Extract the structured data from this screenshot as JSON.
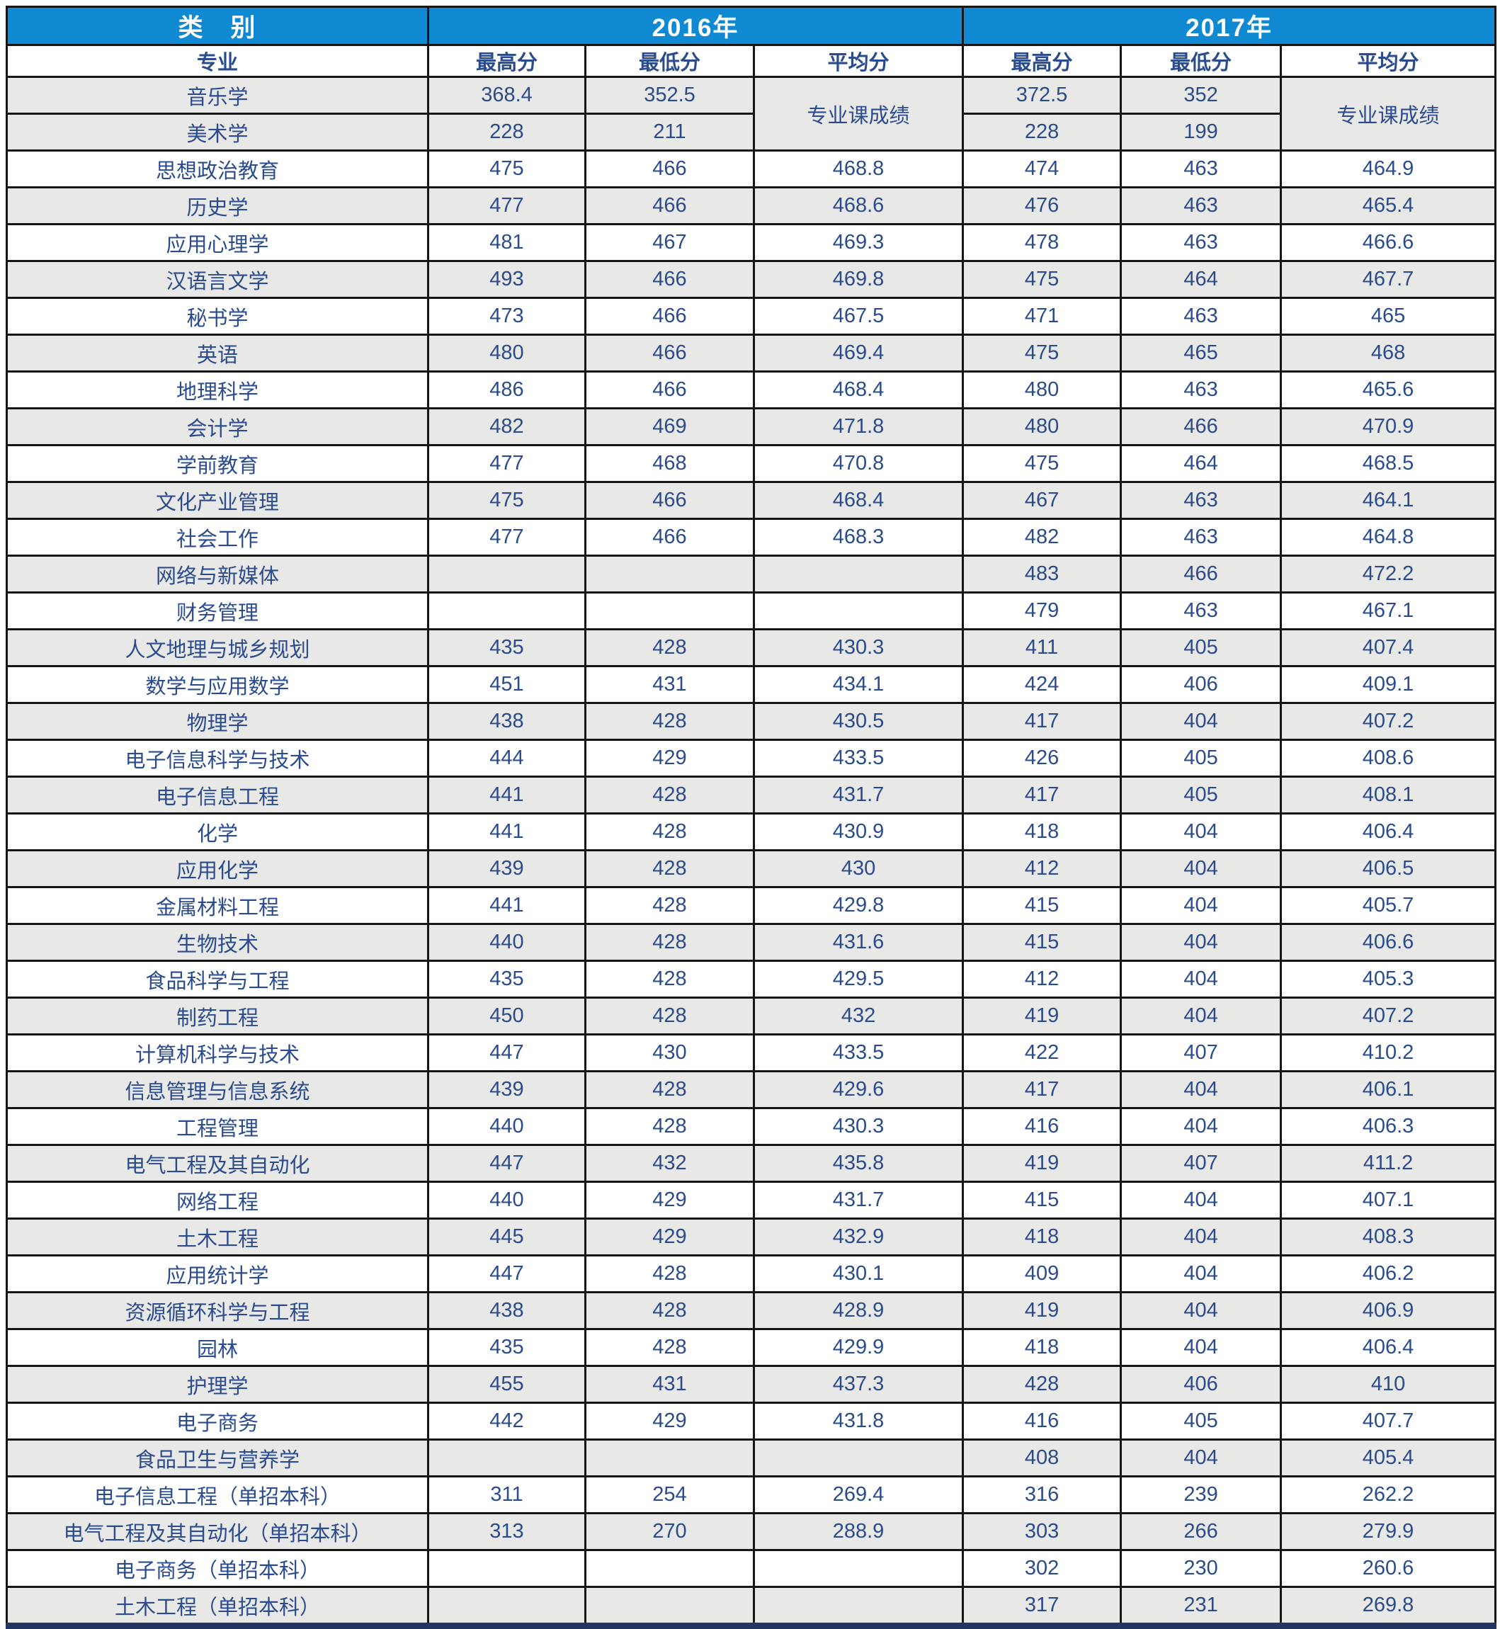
{
  "table": {
    "header": {
      "category": "类　别",
      "year_2016": "2016年",
      "year_2017": "2017年",
      "major": "专业",
      "max_score": "最高分",
      "min_score": "最低分",
      "avg_score": "平均分"
    },
    "merged_scores_label": "专业课成绩",
    "rows": [
      {
        "major": "音乐学",
        "values": [
          "368.4",
          "352.5",
          "",
          "372.5",
          "352",
          ""
        ]
      },
      {
        "major": "美术学",
        "values": [
          "228",
          "211",
          "",
          "228",
          "199",
          ""
        ]
      },
      {
        "major": "思想政治教育",
        "values": [
          "475",
          "466",
          "468.8",
          "474",
          "463",
          "464.9"
        ]
      },
      {
        "major": "历史学",
        "values": [
          "477",
          "466",
          "468.6",
          "476",
          "463",
          "465.4"
        ]
      },
      {
        "major": "应用心理学",
        "values": [
          "481",
          "467",
          "469.3",
          "478",
          "463",
          "466.6"
        ]
      },
      {
        "major": "汉语言文学",
        "values": [
          "493",
          "466",
          "469.8",
          "475",
          "464",
          "467.7"
        ]
      },
      {
        "major": "秘书学",
        "values": [
          "473",
          "466",
          "467.5",
          "471",
          "463",
          "465"
        ]
      },
      {
        "major": "英语",
        "values": [
          "480",
          "466",
          "469.4",
          "475",
          "465",
          "468"
        ]
      },
      {
        "major": "地理科学",
        "values": [
          "486",
          "466",
          "468.4",
          "480",
          "463",
          "465.6"
        ]
      },
      {
        "major": "会计学",
        "values": [
          "482",
          "469",
          "471.8",
          "480",
          "466",
          "470.9"
        ]
      },
      {
        "major": "学前教育",
        "values": [
          "477",
          "468",
          "470.8",
          "475",
          "464",
          "468.5"
        ]
      },
      {
        "major": "文化产业管理",
        "values": [
          "475",
          "466",
          "468.4",
          "467",
          "463",
          "464.1"
        ]
      },
      {
        "major": "社会工作",
        "values": [
          "477",
          "466",
          "468.3",
          "482",
          "463",
          "464.8"
        ]
      },
      {
        "major": "网络与新媒体",
        "values": [
          "",
          "",
          "",
          "483",
          "466",
          "472.2"
        ]
      },
      {
        "major": "财务管理",
        "values": [
          "",
          "",
          "",
          "479",
          "463",
          "467.1"
        ]
      },
      {
        "major": "人文地理与城乡规划",
        "values": [
          "435",
          "428",
          "430.3",
          "411",
          "405",
          "407.4"
        ]
      },
      {
        "major": "数学与应用数学",
        "values": [
          "451",
          "431",
          "434.1",
          "424",
          "406",
          "409.1"
        ]
      },
      {
        "major": "物理学",
        "values": [
          "438",
          "428",
          "430.5",
          "417",
          "404",
          "407.2"
        ]
      },
      {
        "major": "电子信息科学与技术",
        "values": [
          "444",
          "429",
          "433.5",
          "426",
          "405",
          "408.6"
        ]
      },
      {
        "major": "电子信息工程",
        "values": [
          "441",
          "428",
          "431.7",
          "417",
          "405",
          "408.1"
        ]
      },
      {
        "major": "化学",
        "values": [
          "441",
          "428",
          "430.9",
          "418",
          "404",
          "406.4"
        ]
      },
      {
        "major": "应用化学",
        "values": [
          "439",
          "428",
          "430",
          "412",
          "404",
          "406.5"
        ]
      },
      {
        "major": "金属材料工程",
        "values": [
          "441",
          "428",
          "429.8",
          "415",
          "404",
          "405.7"
        ]
      },
      {
        "major": "生物技术",
        "values": [
          "440",
          "428",
          "431.6",
          "415",
          "404",
          "406.6"
        ]
      },
      {
        "major": "食品科学与工程",
        "values": [
          "435",
          "428",
          "429.5",
          "412",
          "404",
          "405.3"
        ]
      },
      {
        "major": "制药工程",
        "values": [
          "450",
          "428",
          "432",
          "419",
          "404",
          "407.2"
        ]
      },
      {
        "major": "计算机科学与技术",
        "values": [
          "447",
          "430",
          "433.5",
          "422",
          "407",
          "410.2"
        ]
      },
      {
        "major": "信息管理与信息系统",
        "values": [
          "439",
          "428",
          "429.6",
          "417",
          "404",
          "406.1"
        ]
      },
      {
        "major": "工程管理",
        "values": [
          "440",
          "428",
          "430.3",
          "416",
          "404",
          "406.3"
        ]
      },
      {
        "major": "电气工程及其自动化",
        "values": [
          "447",
          "432",
          "435.8",
          "419",
          "407",
          "411.2"
        ]
      },
      {
        "major": "网络工程",
        "values": [
          "440",
          "429",
          "431.7",
          "415",
          "404",
          "407.1"
        ]
      },
      {
        "major": "土木工程",
        "values": [
          "445",
          "429",
          "432.9",
          "418",
          "404",
          "408.3"
        ]
      },
      {
        "major": "应用统计学",
        "values": [
          "447",
          "428",
          "430.1",
          "409",
          "404",
          "406.2"
        ]
      },
      {
        "major": "资源循环科学与工程",
        "values": [
          "438",
          "428",
          "428.9",
          "419",
          "404",
          "406.9"
        ]
      },
      {
        "major": "园林",
        "values": [
          "435",
          "428",
          "429.9",
          "418",
          "404",
          "406.4"
        ]
      },
      {
        "major": "护理学",
        "values": [
          "455",
          "431",
          "437.3",
          "428",
          "406",
          "410"
        ]
      },
      {
        "major": "电子商务",
        "values": [
          "442",
          "429",
          "431.8",
          "416",
          "405",
          "407.7"
        ]
      },
      {
        "major": "食品卫生与营养学",
        "values": [
          "",
          "",
          "",
          "408",
          "404",
          "405.4"
        ]
      },
      {
        "major": "电子信息工程（单招本科）",
        "values": [
          "311",
          "254",
          "269.4",
          "316",
          "239",
          "262.2"
        ]
      },
      {
        "major": "电气工程及其自动化（单招本科）",
        "values": [
          "313",
          "270",
          "288.9",
          "303",
          "266",
          "279.9"
        ]
      },
      {
        "major": "电子商务（单招本科）",
        "values": [
          "",
          "",
          "",
          "302",
          "230",
          "260.6"
        ]
      },
      {
        "major": "土木工程（单招本科）",
        "values": [
          "",
          "",
          "",
          "317",
          "231",
          "269.8"
        ]
      }
    ]
  },
  "colors": {
    "header_bg": "#0f89d2",
    "header_text": "#ffffff",
    "text": "#2a4b8d",
    "row_alt_bg": "#e8e8e6",
    "border": "#151515",
    "bottom_border": "#22355e"
  }
}
